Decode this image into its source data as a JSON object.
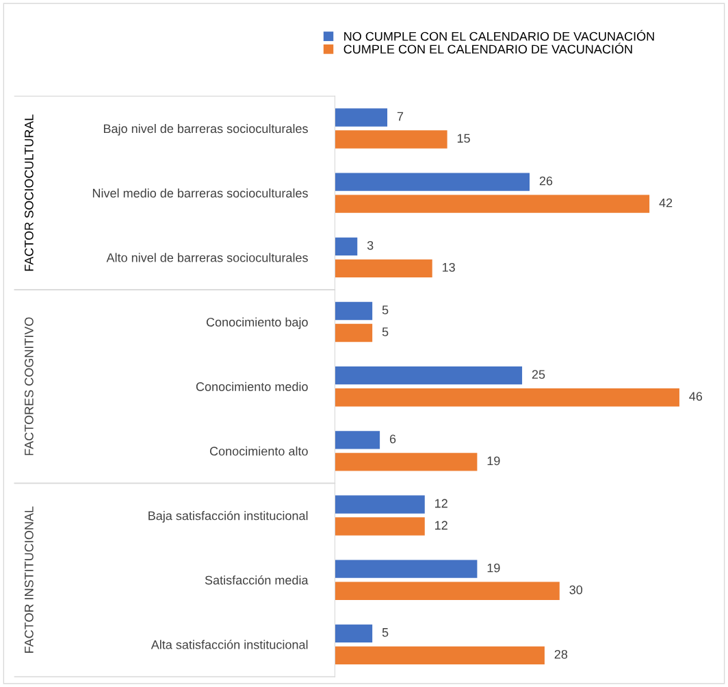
{
  "chart_data": {
    "type": "bar",
    "orientation": "horizontal",
    "data_labels": true,
    "legend": "top",
    "grid": false,
    "categories": [
      "Bajo nivel de barreras socioculturales",
      "Nivel medio de barreras socioculturales",
      "Alto nivel de barreras socioculturales",
      "Conocimiento bajo",
      "Conocimiento medio",
      "Conocimiento alto",
      "Baja satisfacción institucional",
      "Satisfacción media",
      "Alta satisfacción institucional"
    ],
    "series": [
      {
        "name": "NO CUMPLE CON EL CALENDARIO DE VACUNACIÓN",
        "color": "#4472c4",
        "values": [
          7,
          26,
          3,
          5,
          25,
          6,
          12,
          19,
          5
        ]
      },
      {
        "name": "CUMPLE CON EL CALENDARIO DE VACUNACIÓN",
        "color": "#ed7d31",
        "values": [
          15,
          42,
          13,
          5,
          46,
          19,
          12,
          30,
          28
        ]
      }
    ],
    "annotations": [
      "FACTOR SOCIOCULTURAL",
      "FACTORES COGNITIVO",
      "FACTOR INSTITUCIONAL"
    ]
  }
}
